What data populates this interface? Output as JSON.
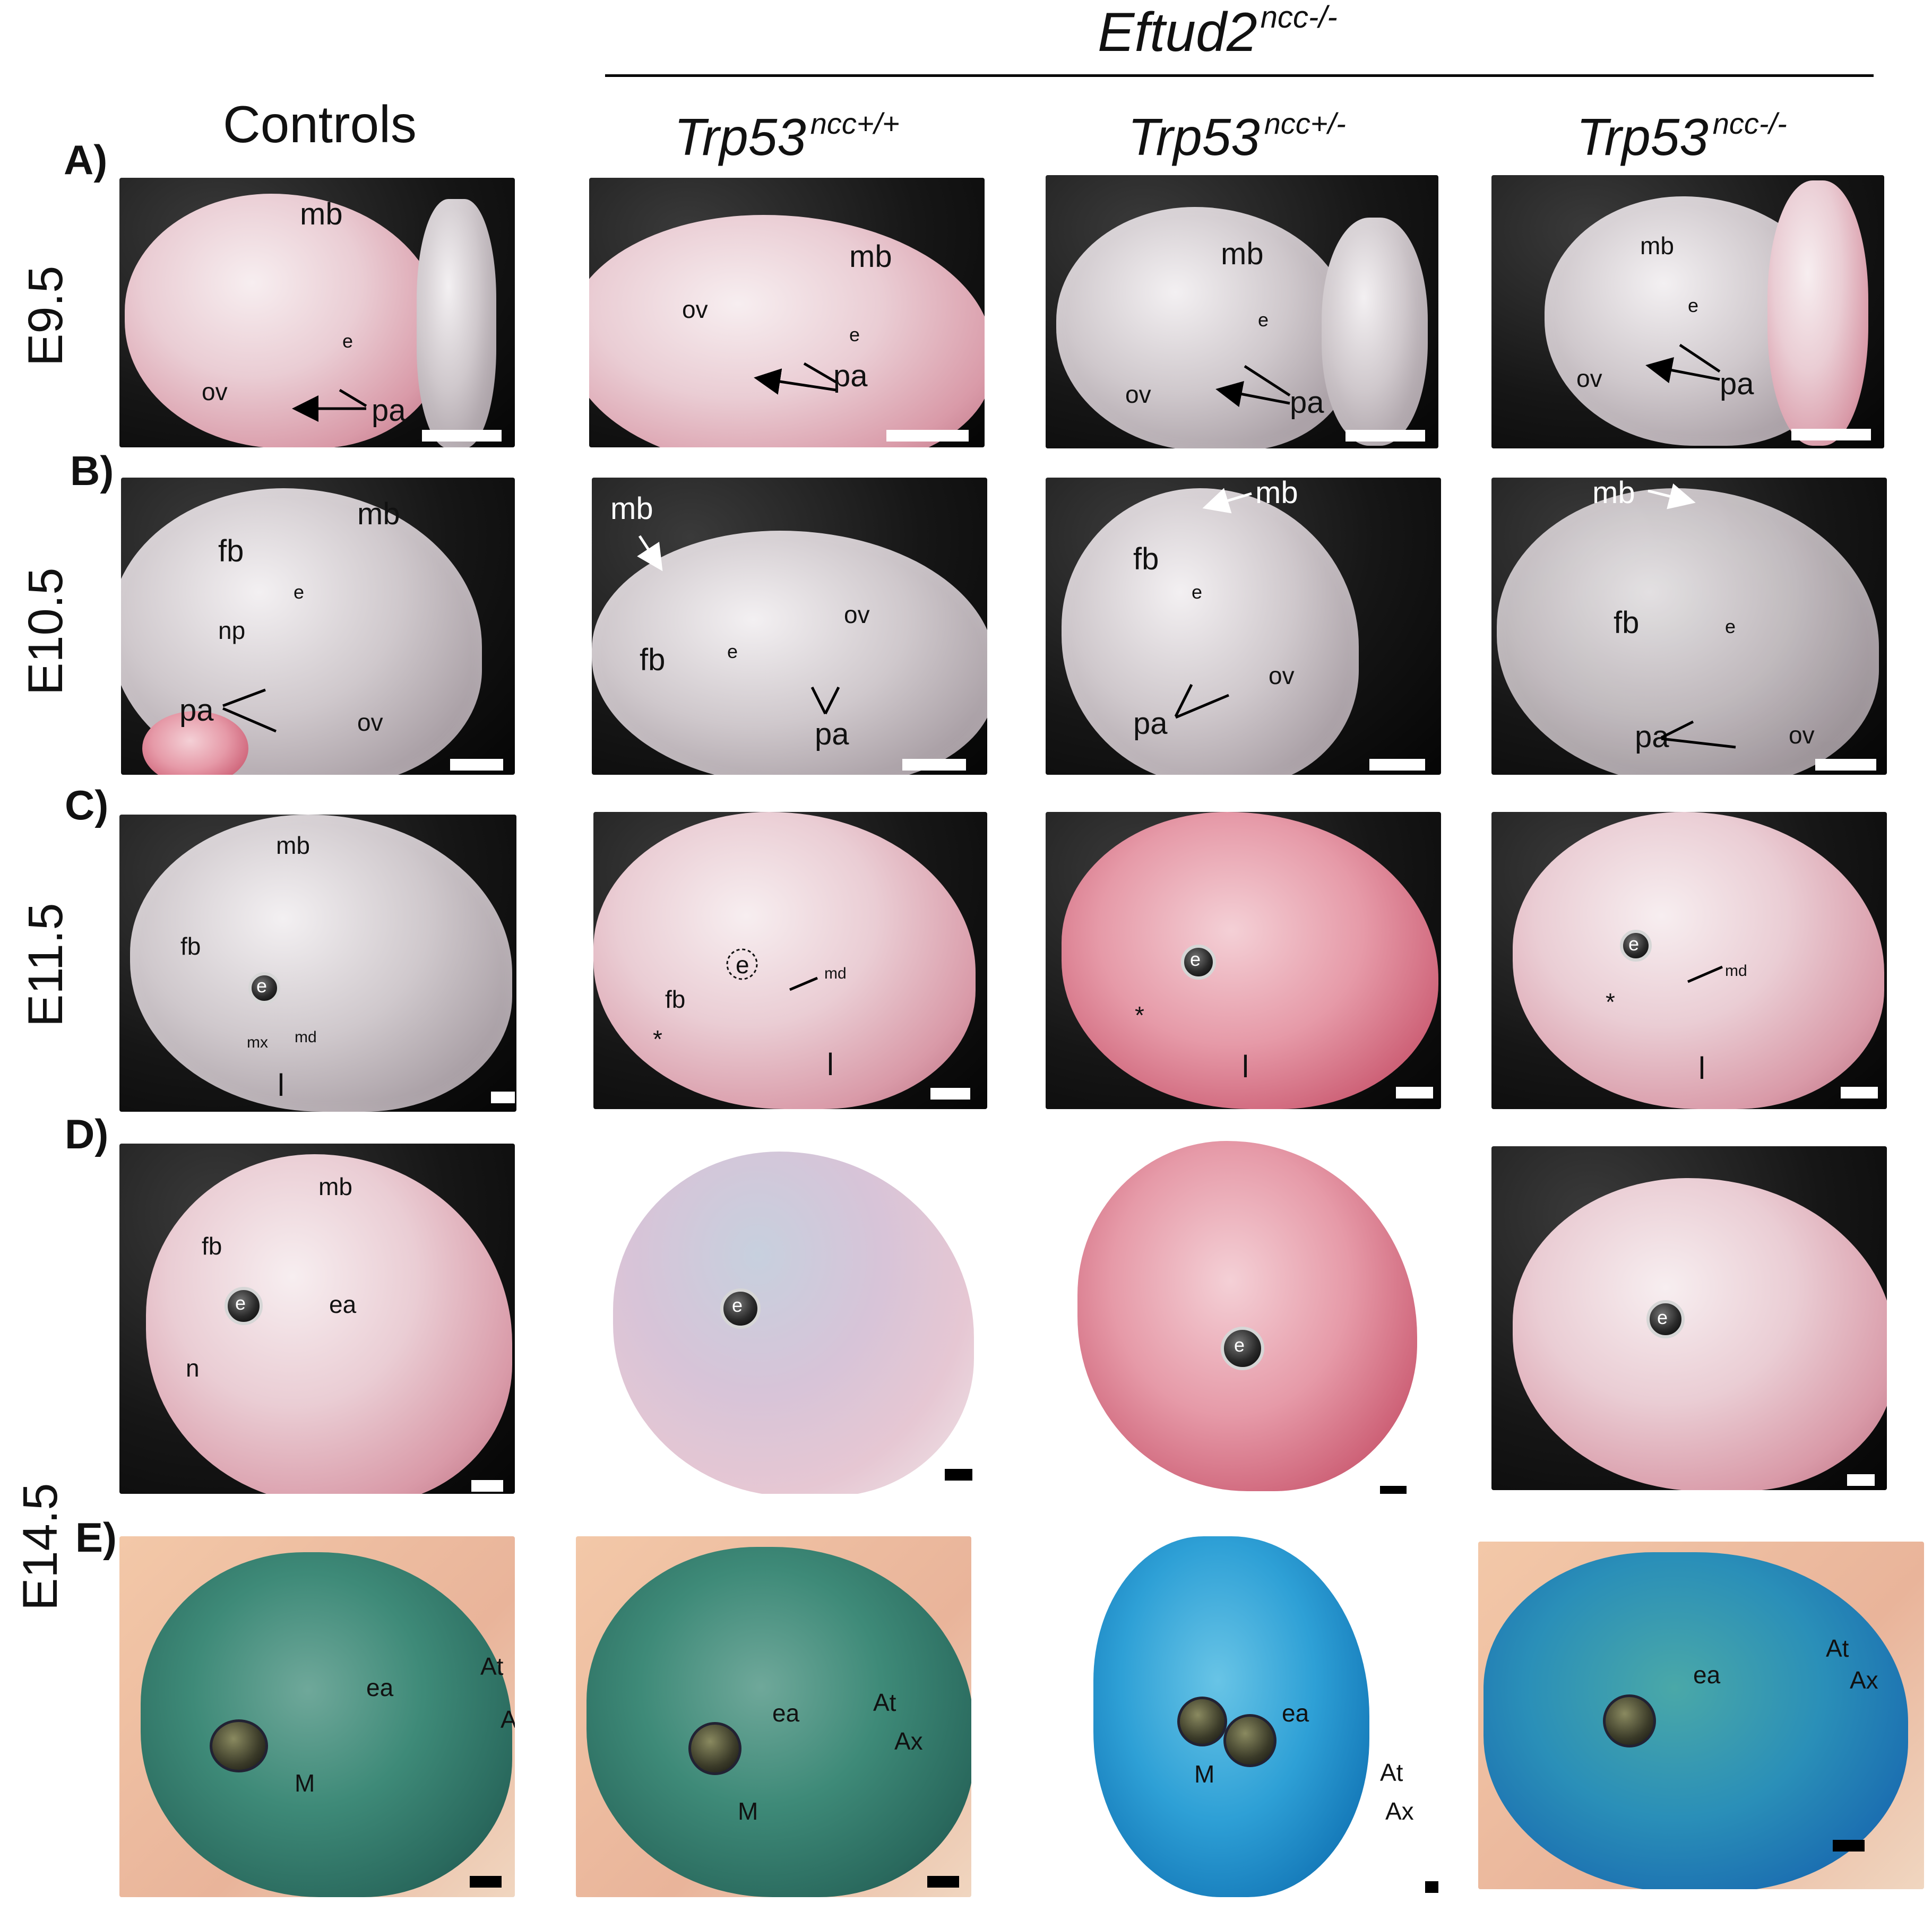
{
  "header": {
    "group_title": "Eftud2",
    "group_superscript": "ncc-/-",
    "columns": [
      {
        "title": "Controls",
        "superscript": ""
      },
      {
        "title": "Trp53",
        "superscript": "ncc+/+"
      },
      {
        "title": "Trp53",
        "superscript": "ncc+/-"
      },
      {
        "title": "Trp53",
        "superscript": "ncc-/-"
      }
    ]
  },
  "rows": [
    {
      "letter": "A)",
      "stage": "E9.5"
    },
    {
      "letter": "B)",
      "stage": "E10.5"
    },
    {
      "letter": "C)",
      "stage": "E11.5"
    },
    {
      "letter": "D)",
      "stage": ""
    },
    {
      "letter": "E)",
      "stage": ""
    }
  ],
  "shared_stage": "E14.5",
  "labels": {
    "a1": [
      "mb",
      "e",
      "ov",
      "pa"
    ],
    "a2": [
      "mb",
      "ov",
      "e",
      "pa"
    ],
    "a3": [
      "mb",
      "e",
      "ov",
      "pa"
    ],
    "a4": [
      "mb",
      "e",
      "ov",
      "pa"
    ],
    "b1": [
      "fb",
      "mb",
      "e",
      "np",
      "pa",
      "ov"
    ],
    "b2": [
      "mb",
      "fb",
      "e",
      "ov",
      "pa"
    ],
    "b3": [
      "mb",
      "fb",
      "e",
      "ov",
      "pa"
    ],
    "b4": [
      "mb",
      "fb",
      "e",
      "pa",
      "ov"
    ],
    "c1": [
      "mb",
      "fb",
      "e",
      "mx",
      "md",
      "l"
    ],
    "c2": [
      "e",
      "md",
      "fb",
      "*",
      "l"
    ],
    "c3": [
      "e",
      "*",
      "l"
    ],
    "c4": [
      "e",
      "md",
      "*",
      "l"
    ],
    "d1": [
      "mb",
      "fb",
      "e",
      "ea",
      "n"
    ],
    "d2": [
      "e"
    ],
    "d3": [
      "e"
    ],
    "d4": [
      "e"
    ],
    "e1": [
      "ea",
      "At",
      "Ax",
      "M"
    ],
    "e2": [
      "ea",
      "At",
      "Ax",
      "M"
    ],
    "e3": [
      "ea",
      "M",
      "At",
      "Ax"
    ],
    "e4": [
      "ea",
      "At",
      "Ax"
    ]
  }
}
